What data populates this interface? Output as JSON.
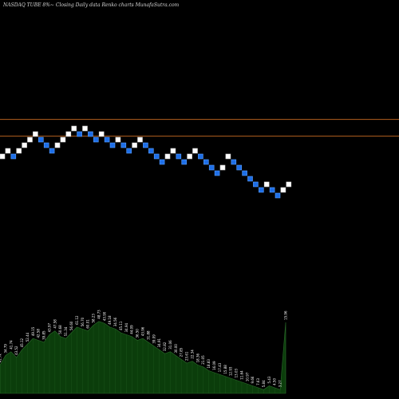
{
  "header": {
    "title": "NASDAQ TUBE 8%~  Closing Daily data  Renko  charts MunafaSutra.com"
  },
  "chart_data": {
    "type": "renko",
    "title": "NASDAQ TUBE 8%~  Closing Daily data  Renko  charts MunafaSutra.com",
    "colors": {
      "up": "#ffffff",
      "down": "#1e6fe8",
      "down_border": "#5aa0ff",
      "reference_line": "#b5601f",
      "volume": "#0b3d0b",
      "volume_edge": "#2a6a2a"
    },
    "reference_levels": [
      7.2,
      4.2
    ],
    "bricks": [
      {
        "level": 0.5,
        "dir": "up"
      },
      {
        "level": 1.5,
        "dir": "up"
      },
      {
        "level": 0.5,
        "dir": "down"
      },
      {
        "level": 1.5,
        "dir": "up"
      },
      {
        "level": 2.5,
        "dir": "up"
      },
      {
        "level": 3.5,
        "dir": "up"
      },
      {
        "level": 4.5,
        "dir": "up"
      },
      {
        "level": 3.5,
        "dir": "down"
      },
      {
        "level": 2.5,
        "dir": "down"
      },
      {
        "level": 1.5,
        "dir": "down"
      },
      {
        "level": 2.5,
        "dir": "up"
      },
      {
        "level": 3.5,
        "dir": "up"
      },
      {
        "level": 4.5,
        "dir": "up"
      },
      {
        "level": 5.5,
        "dir": "up"
      },
      {
        "level": 4.5,
        "dir": "down"
      },
      {
        "level": 5.5,
        "dir": "up"
      },
      {
        "level": 4.5,
        "dir": "down"
      },
      {
        "level": 3.5,
        "dir": "down"
      },
      {
        "level": 4.5,
        "dir": "up"
      },
      {
        "level": 3.5,
        "dir": "down"
      },
      {
        "level": 2.5,
        "dir": "down"
      },
      {
        "level": 3.5,
        "dir": "up"
      },
      {
        "level": 2.5,
        "dir": "down"
      },
      {
        "level": 1.5,
        "dir": "down"
      },
      {
        "level": 2.5,
        "dir": "up"
      },
      {
        "level": 3.5,
        "dir": "up"
      },
      {
        "level": 2.5,
        "dir": "down"
      },
      {
        "level": 1.5,
        "dir": "down"
      },
      {
        "level": 0.5,
        "dir": "down"
      },
      {
        "level": -0.5,
        "dir": "down"
      },
      {
        "level": 0.5,
        "dir": "up"
      },
      {
        "level": 1.5,
        "dir": "up"
      },
      {
        "level": 0.5,
        "dir": "down"
      },
      {
        "level": -0.5,
        "dir": "down"
      },
      {
        "level": 0.5,
        "dir": "up"
      },
      {
        "level": 1.5,
        "dir": "up"
      },
      {
        "level": 0.5,
        "dir": "down"
      },
      {
        "level": -0.5,
        "dir": "down"
      },
      {
        "level": -1.5,
        "dir": "down"
      },
      {
        "level": -2.5,
        "dir": "down"
      },
      {
        "level": -1.5,
        "dir": "up"
      },
      {
        "level": 0.5,
        "dir": "up"
      },
      {
        "level": -0.5,
        "dir": "down"
      },
      {
        "level": -1.5,
        "dir": "down"
      },
      {
        "level": -2.5,
        "dir": "down"
      },
      {
        "level": -3.5,
        "dir": "down"
      },
      {
        "level": -4.5,
        "dir": "down"
      },
      {
        "level": -5.5,
        "dir": "down"
      },
      {
        "level": -4.5,
        "dir": "up"
      },
      {
        "level": -5.5,
        "dir": "down"
      },
      {
        "level": -6.5,
        "dir": "down"
      },
      {
        "level": -5.5,
        "dir": "up"
      },
      {
        "level": -4.5,
        "dir": "up"
      }
    ],
    "volume": {
      "values": [
        30,
        40,
        44,
        38,
        46,
        52,
        58,
        56,
        54,
        62,
        66,
        60,
        58,
        64,
        70,
        68,
        66,
        72,
        76,
        74,
        70,
        68,
        64,
        62,
        60,
        56,
        58,
        54,
        50,
        46,
        42,
        44,
        40,
        36,
        32,
        34,
        30,
        28,
        24,
        22,
        20,
        18,
        16,
        14,
        12,
        10,
        8,
        6,
        4,
        8,
        6,
        4,
        75
      ],
      "labels": [
        "41.7k",
        "34.79",
        "41.74",
        "43.52",
        "45.12",
        "52.44",
        "49.15",
        "42.58",
        "39.85",
        "43.97",
        "47.58",
        "50.68",
        "51.34",
        "56.60",
        "61.12",
        "56.70",
        "60.01",
        "58.23",
        "48.73",
        "43.90",
        "49.18",
        "34.56",
        "45.11",
        "34.94",
        "44.09",
        "36.50",
        "43.96",
        "31.88",
        "39.09",
        "34.91",
        "32.82",
        "31.06",
        "30.00",
        "27.85",
        "23.61",
        "22.34",
        "18.36",
        "21.05",
        "18.83",
        "16.09",
        "17.43",
        "15.88",
        "12.93",
        "13.03",
        "11.64",
        "10.97",
        "9.66",
        "7.63",
        "5.84",
        "5.43",
        "4.50",
        "3.27",
        "15.96"
      ]
    }
  }
}
